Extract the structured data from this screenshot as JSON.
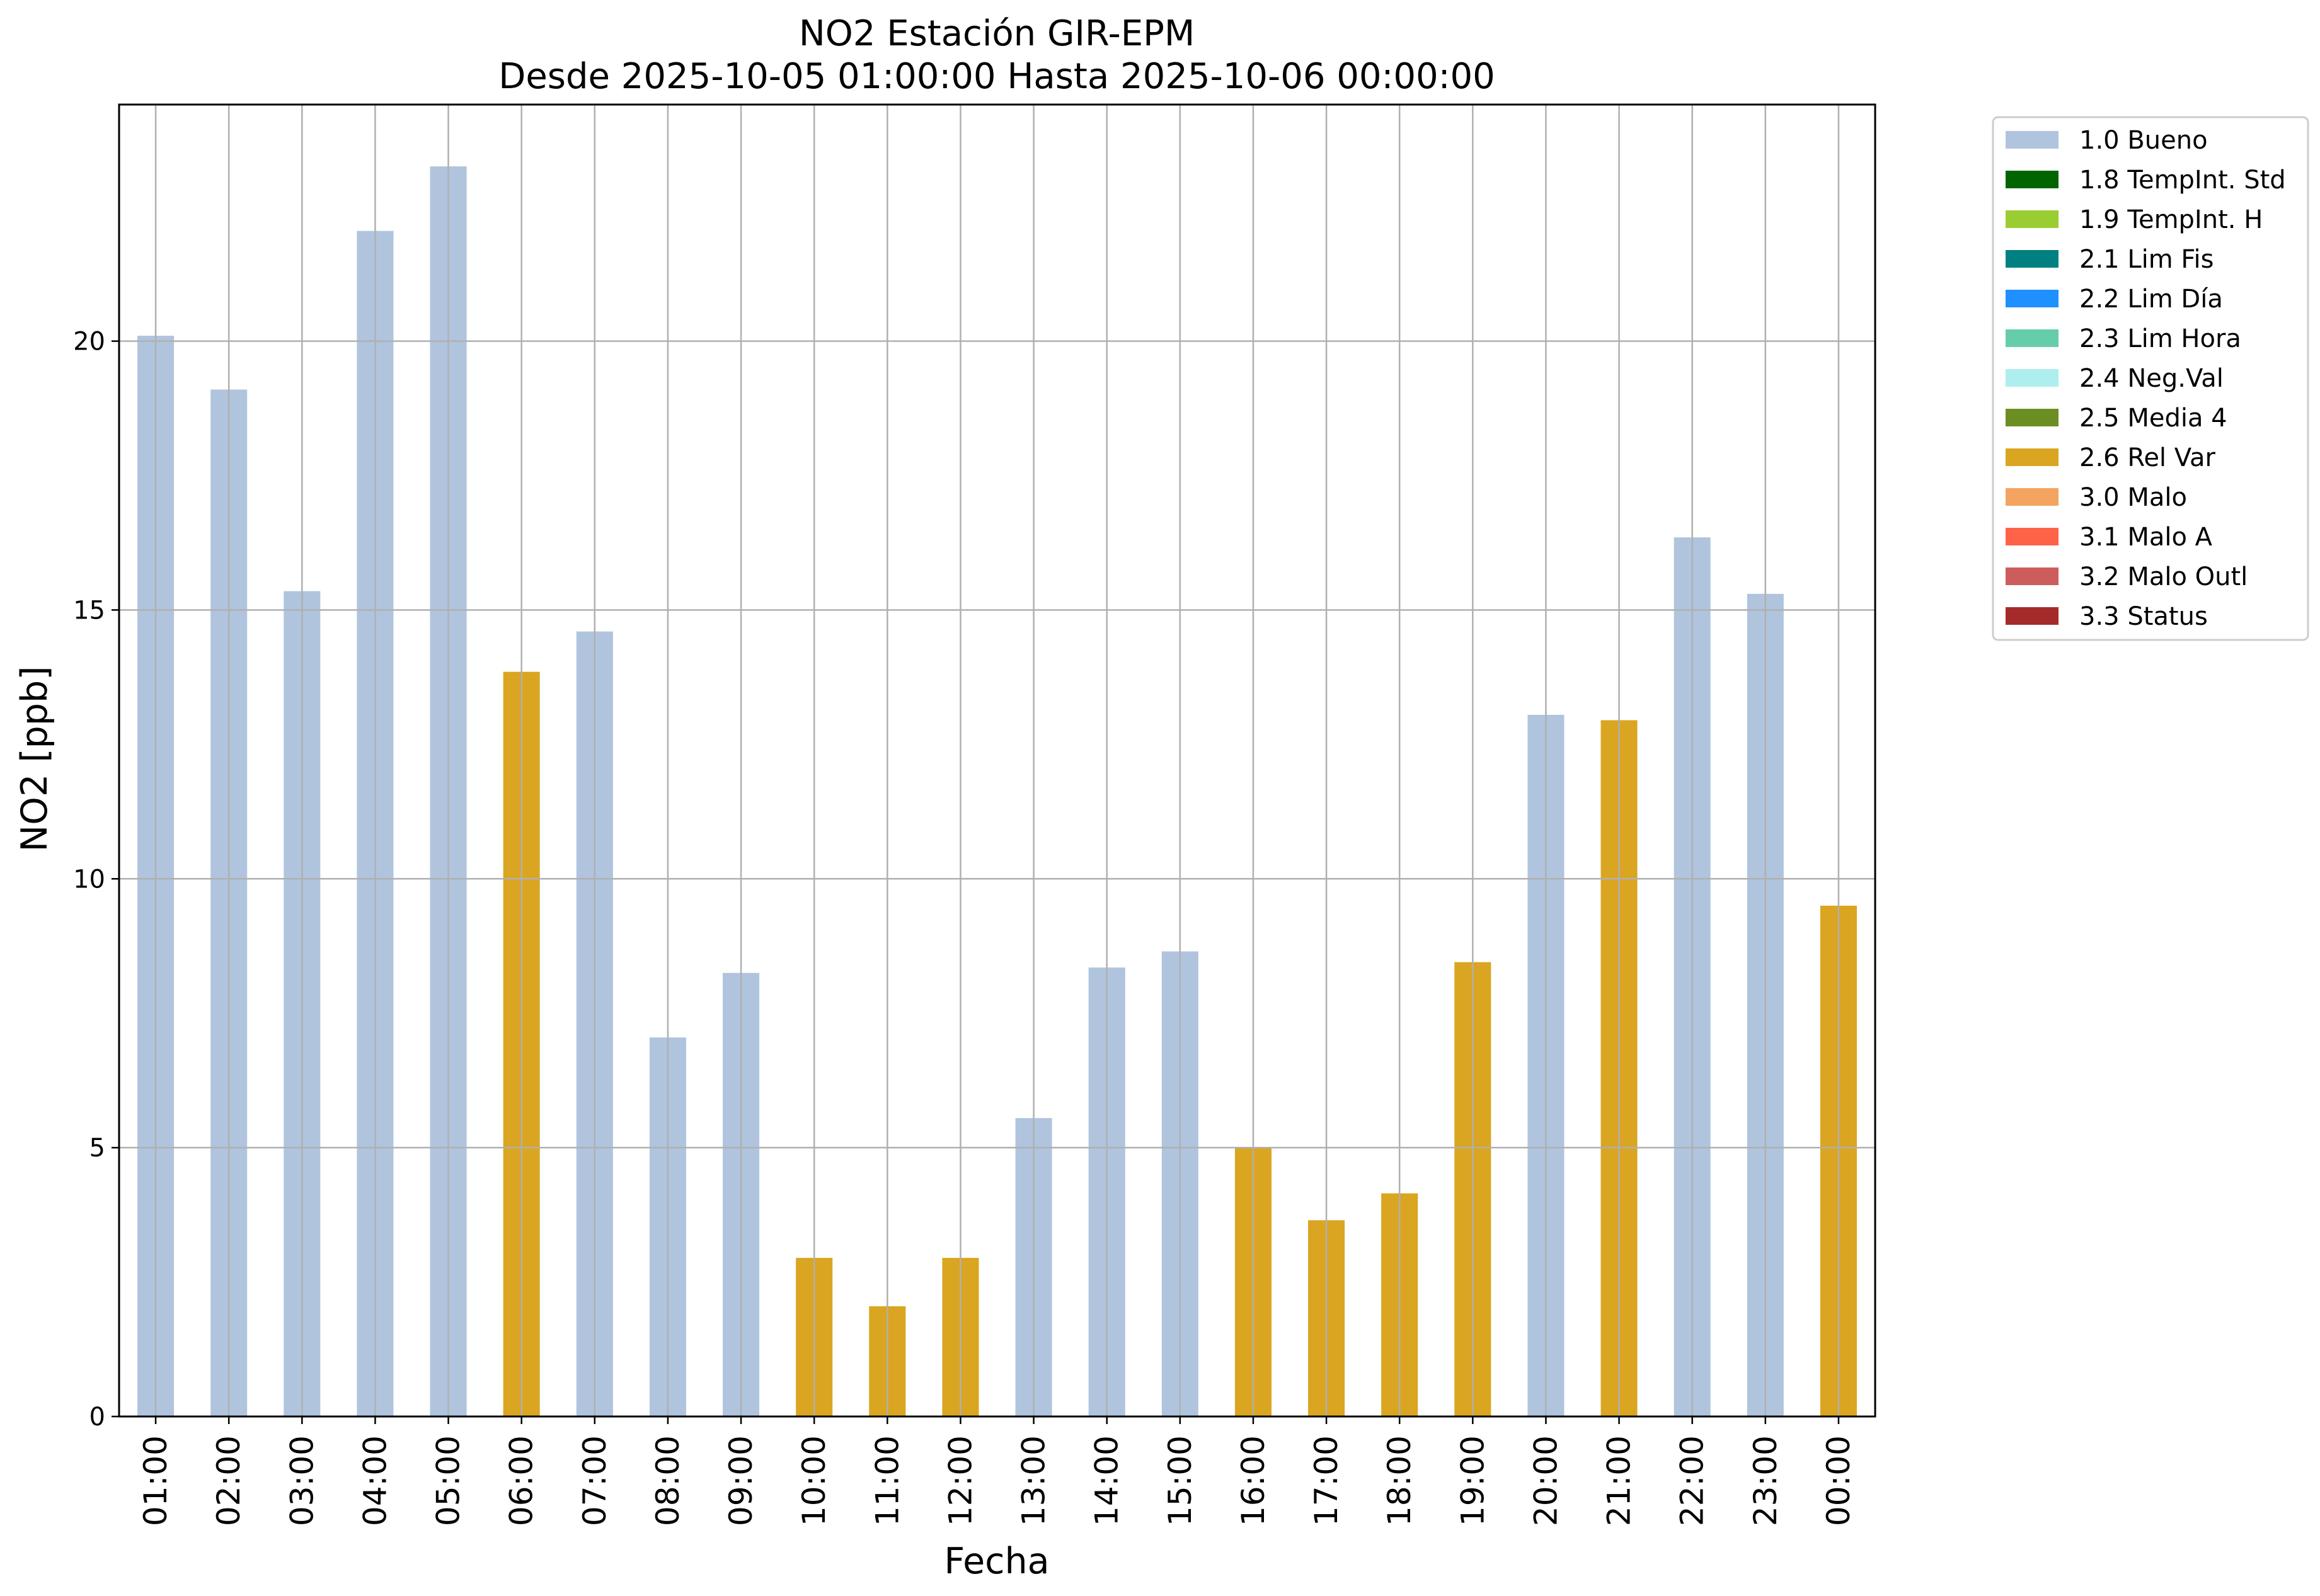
{
  "chart_data": {
    "type": "bar",
    "title": "NO2 Estación GIR-EPM",
    "subtitle": "Desde 2025-10-05 01:00:00 Hasta 2025-10-06 00:00:00",
    "xlabel": "Fecha",
    "ylabel": "NO2 [ppb]",
    "ylim": [
      0,
      24.4
    ],
    "yticks": [
      0,
      5,
      10,
      15,
      20
    ],
    "grid": true,
    "legend_position": "outside-right",
    "categories": [
      "01:00",
      "02:00",
      "03:00",
      "04:00",
      "05:00",
      "06:00",
      "07:00",
      "08:00",
      "09:00",
      "10:00",
      "11:00",
      "12:00",
      "13:00",
      "14:00",
      "15:00",
      "16:00",
      "17:00",
      "18:00",
      "19:00",
      "20:00",
      "21:00",
      "22:00",
      "23:00",
      "00:00"
    ],
    "values": [
      20.1,
      19.1,
      15.35,
      22.05,
      23.25,
      13.85,
      14.6,
      7.05,
      8.25,
      2.95,
      2.05,
      2.95,
      5.55,
      8.35,
      8.65,
      5.0,
      3.65,
      4.15,
      8.45,
      13.05,
      12.95,
      16.35,
      15.3,
      9.5
    ],
    "flags": [
      "1.0 Bueno",
      "1.0 Bueno",
      "1.0 Bueno",
      "1.0 Bueno",
      "1.0 Bueno",
      "2.6 Rel Var",
      "1.0 Bueno",
      "1.0 Bueno",
      "1.0 Bueno",
      "2.6 Rel Var",
      "2.6 Rel Var",
      "2.6 Rel Var",
      "1.0 Bueno",
      "1.0 Bueno",
      "1.0 Bueno",
      "2.6 Rel Var",
      "2.6 Rel Var",
      "2.6 Rel Var",
      "2.6 Rel Var",
      "1.0 Bueno",
      "2.6 Rel Var",
      "1.0 Bueno",
      "1.0 Bueno",
      "2.6 Rel Var"
    ],
    "legend": [
      {
        "label": "1.0 Bueno",
        "color": "#b0c4de"
      },
      {
        "label": "1.8 TempInt. Std",
        "color": "#006400"
      },
      {
        "label": "1.9 TempInt. H",
        "color": "#9acd32"
      },
      {
        "label": "2.1 Lim Fis",
        "color": "#008080"
      },
      {
        "label": "2.2 Lim Día",
        "color": "#1e90ff"
      },
      {
        "label": "2.3 Lim Hora",
        "color": "#66cdaa"
      },
      {
        "label": "2.4 Neg.Val",
        "color": "#afeeee"
      },
      {
        "label": "2.5 Media 4",
        "color": "#6b8e23"
      },
      {
        "label": "2.6 Rel Var",
        "color": "#daa520"
      },
      {
        "label": "3.0 Malo",
        "color": "#f4a460"
      },
      {
        "label": "3.1 Malo A",
        "color": "#ff6347"
      },
      {
        "label": "3.2 Malo Outl",
        "color": "#cd5c5c"
      },
      {
        "label": "3.3 Status",
        "color": "#a52a2a"
      }
    ]
  }
}
